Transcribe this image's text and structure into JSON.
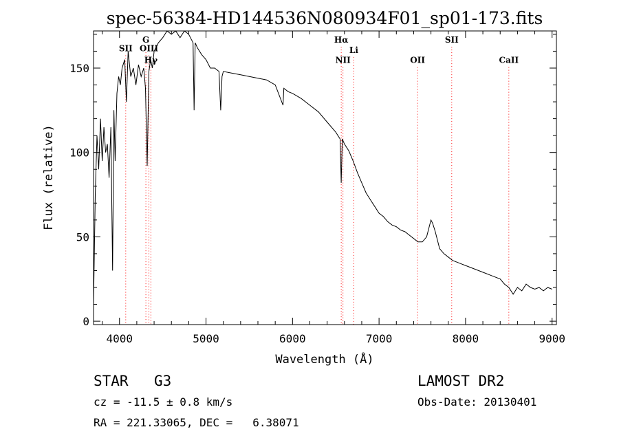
{
  "chart_data": {
    "type": "line",
    "title": "spec-56384-HD144536N080934F01_sp01-173.fits",
    "xlabel": "Wavelength (Å)",
    "ylabel": "Flux (relative)",
    "xlim": [
      3700,
      9050
    ],
    "ylim": [
      -2,
      172
    ],
    "xticks": [
      4000,
      5000,
      6000,
      7000,
      8000,
      9000
    ],
    "yticks": [
      0,
      50,
      100,
      150
    ],
    "grid": false,
    "line_color": "#000000",
    "marker_color": "#ff0000",
    "series": [
      {
        "x": [
          3700,
          3720,
          3740,
          3760,
          3780,
          3800,
          3820,
          3840,
          3860,
          3880,
          3900,
          3920,
          3935,
          3950,
          3970,
          3990,
          4010,
          4030,
          4060,
          4080,
          4100,
          4130,
          4160,
          4190,
          4220,
          4250,
          4280,
          4300,
          4320,
          4340,
          4360,
          4380,
          4400,
          4450,
          4500,
          4550,
          4600,
          4650,
          4700,
          4750,
          4800,
          4850,
          4862,
          4875,
          4900,
          4950,
          5000,
          5050,
          5100,
          5150,
          5170,
          5185,
          5200,
          5300,
          5400,
          5500,
          5600,
          5700,
          5800,
          5890,
          5900,
          5950,
          6000,
          6100,
          6200,
          6300,
          6400,
          6500,
          6550,
          6563,
          6575,
          6600,
          6650,
          6700,
          6750,
          6800,
          6850,
          6900,
          6950,
          7000,
          7050,
          7100,
          7150,
          7200,
          7250,
          7300,
          7350,
          7400,
          7450,
          7500,
          7550,
          7600,
          7620,
          7650,
          7700,
          7750,
          7800,
          7850,
          7900,
          7950,
          8000,
          8100,
          8200,
          8300,
          8400,
          8450,
          8500,
          8550,
          8600,
          8650,
          8700,
          8750,
          8800,
          8850,
          8900,
          8950,
          9000
        ],
        "y": [
          10,
          75,
          110,
          90,
          120,
          95,
          115,
          100,
          105,
          85,
          115,
          30,
          125,
          95,
          135,
          145,
          140,
          150,
          155,
          130,
          160,
          145,
          150,
          140,
          152,
          145,
          150,
          138,
          92,
          148,
          155,
          150,
          160,
          165,
          168,
          172,
          170,
          172,
          168,
          172,
          170,
          165,
          125,
          165,
          162,
          158,
          155,
          150,
          150,
          148,
          125,
          145,
          148,
          147,
          146,
          145,
          144,
          143,
          140,
          128,
          138,
          136,
          135,
          132,
          128,
          124,
          118,
          112,
          108,
          82,
          108,
          105,
          101,
          95,
          88,
          82,
          76,
          72,
          68,
          64,
          62,
          59,
          57,
          56,
          54,
          53,
          51,
          49,
          47,
          47,
          50,
          60,
          58,
          53,
          43,
          40,
          38,
          36,
          35,
          34,
          33,
          31,
          29,
          27,
          25,
          22,
          20,
          16,
          20,
          18,
          22,
          20,
          19,
          20,
          18,
          20,
          19
        ]
      }
    ],
    "markers": [
      {
        "wavelength": 4072,
        "label": "SII",
        "label_flux": 160
      },
      {
        "wavelength": 4305,
        "label": "G",
        "label_flux": 165
      },
      {
        "wavelength": 4340,
        "label": "OIII",
        "label_flux": 160
      },
      {
        "wavelength": 4363,
        "label": "Hγ",
        "label_flux": 153
      },
      {
        "wavelength": 6563,
        "label": "Hα",
        "label_flux": 165
      },
      {
        "wavelength": 6583,
        "label": "NII",
        "label_flux": 153
      },
      {
        "wavelength": 6708,
        "label": "Li",
        "label_flux": 159
      },
      {
        "wavelength": 7445,
        "label": "OII",
        "label_flux": 153
      },
      {
        "wavelength": 7840,
        "label": "SII",
        "label_flux": 165
      },
      {
        "wavelength": 8500,
        "label": "CaII",
        "label_flux": 153
      }
    ]
  },
  "info": {
    "object_class": "STAR",
    "subclass": "G3",
    "survey": "LAMOST DR2",
    "redshift": "cz = -11.5 ± 0.8 km/s",
    "obs_date": "Obs-Date: 20130401",
    "coords": "RA = 221.33065, DEC =   6.38071"
  }
}
